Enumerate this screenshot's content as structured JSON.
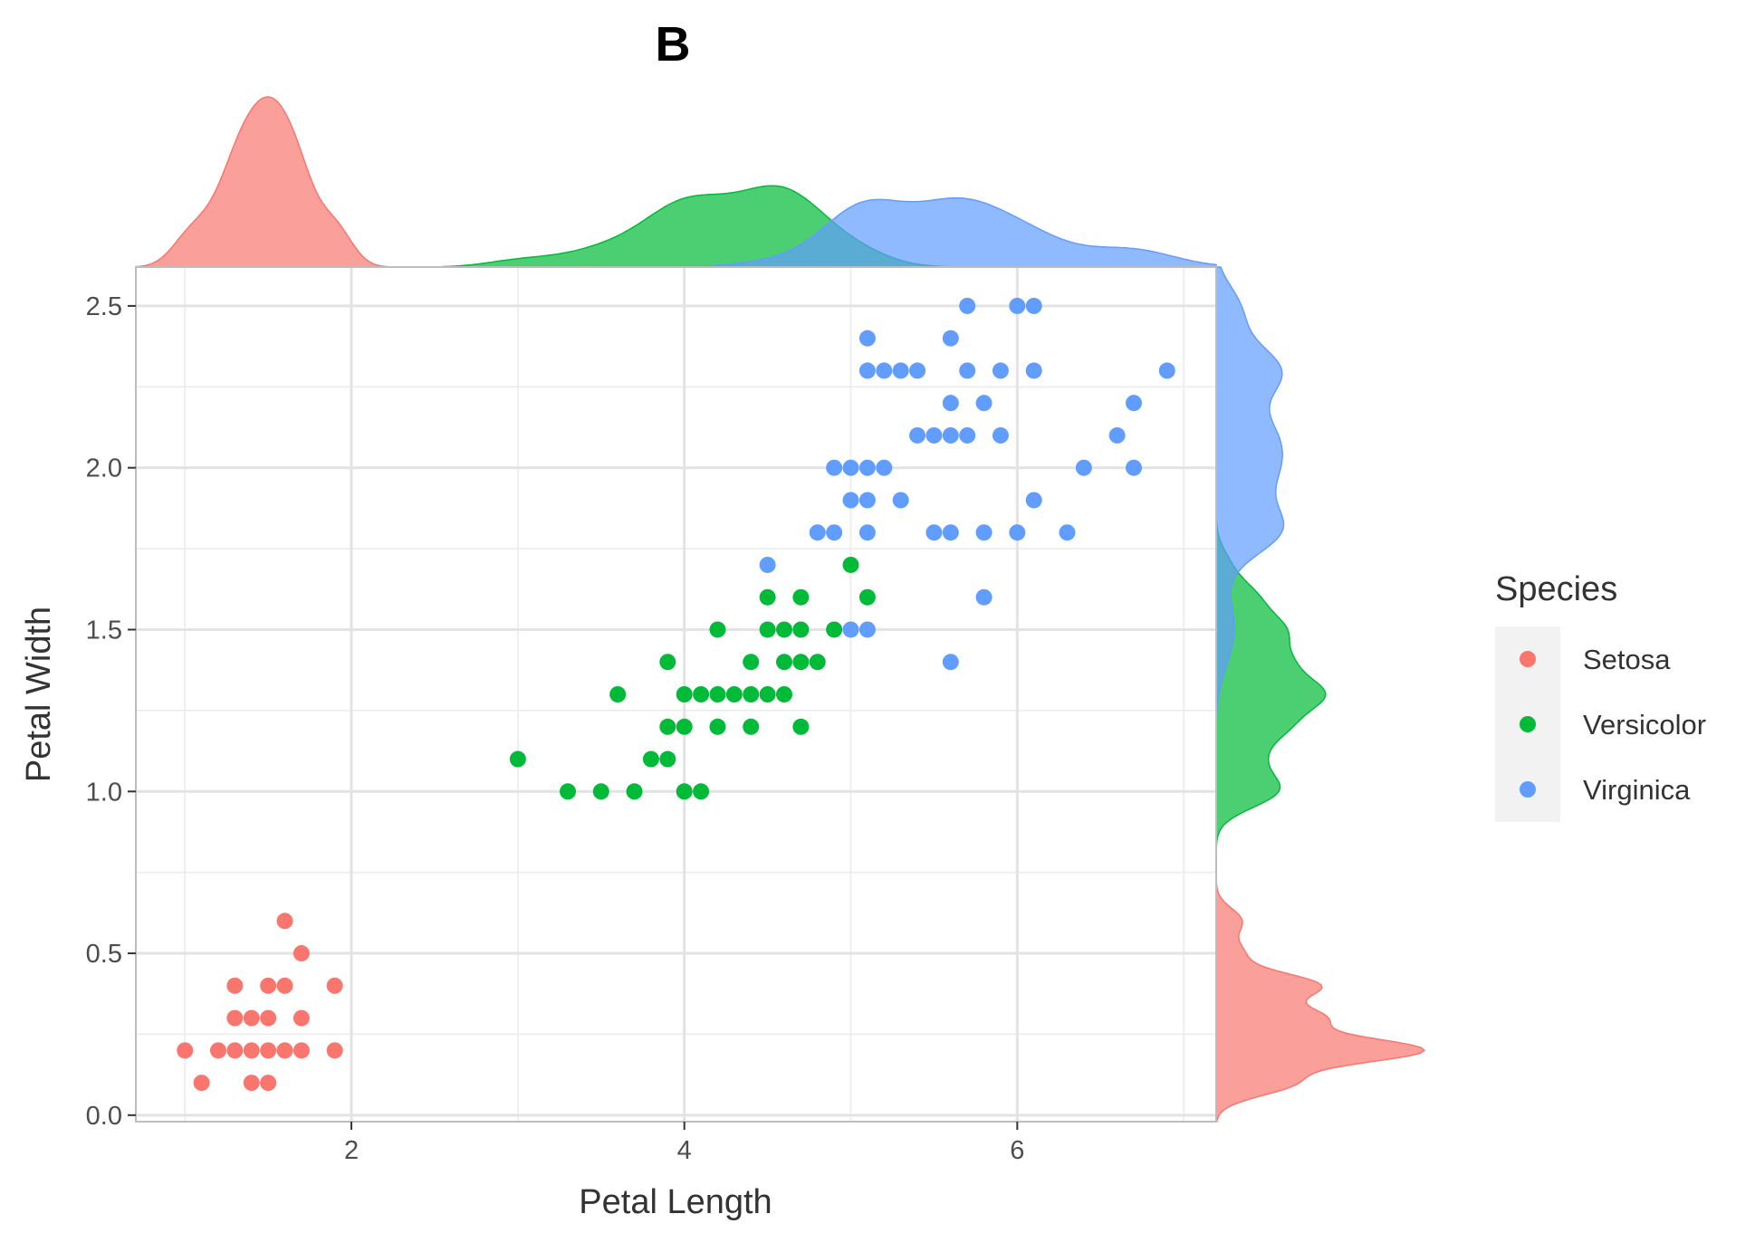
{
  "chart_data": {
    "type": "scatter",
    "title": "B",
    "xlabel": "Petal Length",
    "ylabel": "Petal Width",
    "xlim": [
      0.705,
      7.195
    ],
    "ylim": [
      -0.02,
      2.62
    ],
    "x_ticks": [
      2,
      4,
      6
    ],
    "y_ticks": [
      0.0,
      0.5,
      1.0,
      1.5,
      2.0,
      2.5
    ],
    "x_tick_labels": [
      "2",
      "4",
      "6"
    ],
    "y_tick_labels": [
      "0.0",
      "0.5",
      "1.0",
      "1.5",
      "2.0",
      "2.5"
    ],
    "grid": true,
    "legend": {
      "title": "Species",
      "position": "right"
    },
    "marginal": "density",
    "series": [
      {
        "name": "Setosa",
        "color": "#F8766D",
        "points": [
          [
            1.0,
            0.2
          ],
          [
            1.1,
            0.1
          ],
          [
            1.2,
            0.2
          ],
          [
            1.3,
            0.2
          ],
          [
            1.3,
            0.3
          ],
          [
            1.3,
            0.4
          ],
          [
            1.4,
            0.1
          ],
          [
            1.4,
            0.2
          ],
          [
            1.4,
            0.3
          ],
          [
            1.5,
            0.1
          ],
          [
            1.5,
            0.2
          ],
          [
            1.5,
            0.3
          ],
          [
            1.5,
            0.4
          ],
          [
            1.6,
            0.2
          ],
          [
            1.6,
            0.4
          ],
          [
            1.6,
            0.6
          ],
          [
            1.7,
            0.2
          ],
          [
            1.7,
            0.3
          ],
          [
            1.7,
            0.5
          ],
          [
            1.9,
            0.2
          ],
          [
            1.9,
            0.4
          ]
        ]
      },
      {
        "name": "Versicolor",
        "color": "#00BA38",
        "points": [
          [
            3.0,
            1.1
          ],
          [
            3.3,
            1.0
          ],
          [
            3.5,
            1.0
          ],
          [
            3.6,
            1.3
          ],
          [
            3.7,
            1.0
          ],
          [
            3.8,
            1.1
          ],
          [
            3.9,
            1.1
          ],
          [
            3.9,
            1.2
          ],
          [
            3.9,
            1.4
          ],
          [
            4.0,
            1.0
          ],
          [
            4.0,
            1.2
          ],
          [
            4.0,
            1.3
          ],
          [
            4.1,
            1.0
          ],
          [
            4.1,
            1.3
          ],
          [
            4.2,
            1.2
          ],
          [
            4.2,
            1.3
          ],
          [
            4.2,
            1.5
          ],
          [
            4.3,
            1.3
          ],
          [
            4.4,
            1.2
          ],
          [
            4.4,
            1.3
          ],
          [
            4.4,
            1.4
          ],
          [
            4.5,
            1.3
          ],
          [
            4.5,
            1.5
          ],
          [
            4.5,
            1.6
          ],
          [
            4.6,
            1.3
          ],
          [
            4.6,
            1.4
          ],
          [
            4.6,
            1.5
          ],
          [
            4.7,
            1.2
          ],
          [
            4.7,
            1.4
          ],
          [
            4.7,
            1.5
          ],
          [
            4.7,
            1.6
          ],
          [
            4.8,
            1.4
          ],
          [
            4.9,
            1.5
          ],
          [
            5.0,
            1.7
          ],
          [
            5.1,
            1.6
          ]
        ]
      },
      {
        "name": "Virginica",
        "color": "#619CFF",
        "points": [
          [
            4.5,
            1.7
          ],
          [
            4.8,
            1.8
          ],
          [
            4.9,
            1.8
          ],
          [
            4.9,
            2.0
          ],
          [
            5.0,
            1.5
          ],
          [
            5.0,
            1.9
          ],
          [
            5.0,
            2.0
          ],
          [
            5.1,
            1.5
          ],
          [
            5.1,
            1.8
          ],
          [
            5.1,
            1.9
          ],
          [
            5.1,
            2.0
          ],
          [
            5.1,
            2.3
          ],
          [
            5.1,
            2.4
          ],
          [
            5.2,
            2.0
          ],
          [
            5.2,
            2.3
          ],
          [
            5.3,
            1.9
          ],
          [
            5.3,
            2.3
          ],
          [
            5.4,
            2.1
          ],
          [
            5.4,
            2.3
          ],
          [
            5.5,
            1.8
          ],
          [
            5.5,
            2.1
          ],
          [
            5.6,
            1.4
          ],
          [
            5.6,
            1.8
          ],
          [
            5.6,
            2.1
          ],
          [
            5.6,
            2.2
          ],
          [
            5.6,
            2.4
          ],
          [
            5.7,
            2.1
          ],
          [
            5.7,
            2.3
          ],
          [
            5.7,
            2.5
          ],
          [
            5.8,
            1.6
          ],
          [
            5.8,
            1.8
          ],
          [
            5.8,
            2.2
          ],
          [
            5.9,
            2.1
          ],
          [
            5.9,
            2.3
          ],
          [
            6.0,
            1.8
          ],
          [
            6.0,
            2.5
          ],
          [
            6.1,
            1.9
          ],
          [
            6.1,
            2.3
          ],
          [
            6.1,
            2.5
          ],
          [
            6.3,
            1.8
          ],
          [
            6.4,
            2.0
          ],
          [
            6.6,
            2.1
          ],
          [
            6.7,
            2.0
          ],
          [
            6.7,
            2.2
          ],
          [
            6.9,
            2.3
          ]
        ]
      }
    ]
  }
}
